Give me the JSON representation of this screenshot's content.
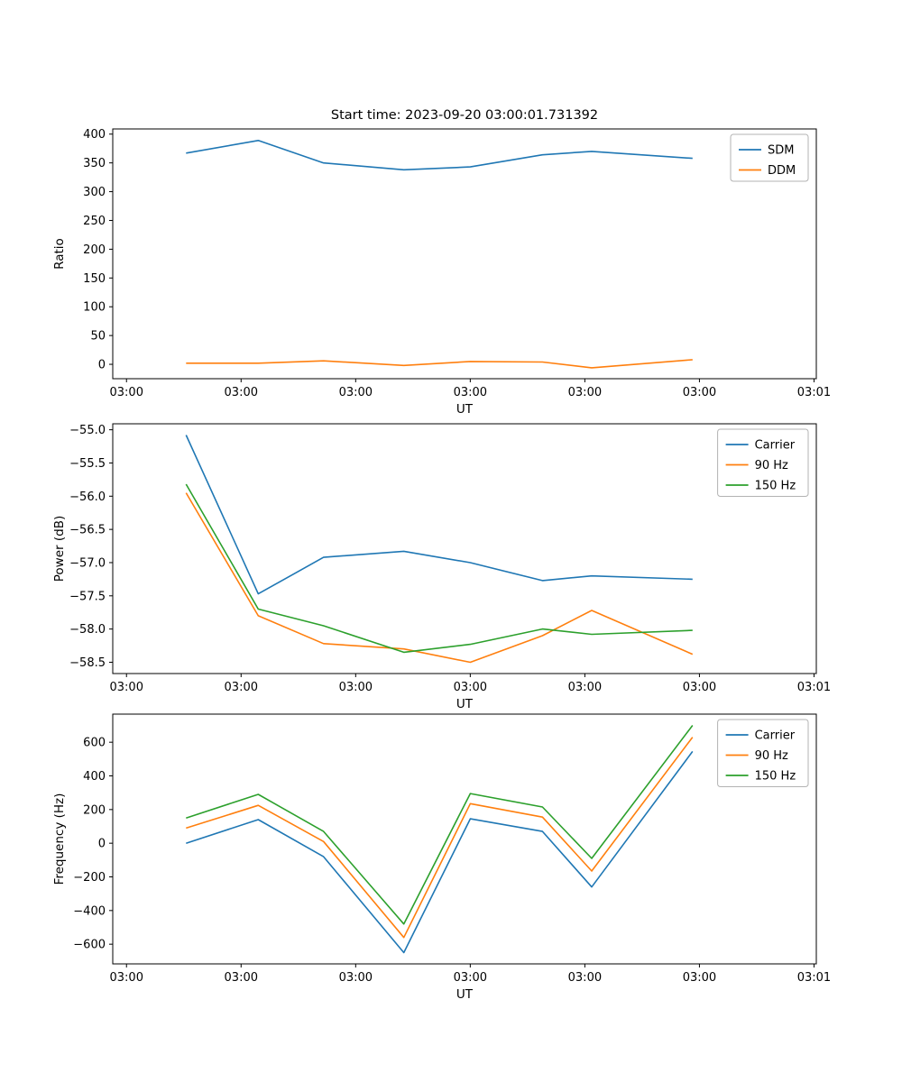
{
  "figure": {
    "title": "Start time: 2023-09-20 03:00:01.731392"
  },
  "chart_data": [
    {
      "type": "line",
      "name": "ratio-plot",
      "title": "Start time: 2023-09-20 03:00:01.731392",
      "xlabel": "UT",
      "ylabel": "Ratio",
      "xlim": [
        -1.2,
        60.2
      ],
      "ylim": [
        -25,
        409
      ],
      "x": [
        5.2,
        11.5,
        17.2,
        24.2,
        30.0,
        36.3,
        40.6,
        49.4
      ],
      "xticks": {
        "values": [
          0,
          10,
          20,
          30,
          40,
          50,
          60
        ],
        "labels": [
          "03:00",
          "03:00",
          "03:00",
          "03:00",
          "03:00",
          "03:00",
          "03:01"
        ]
      },
      "yticks": {
        "values": [
          0,
          50,
          100,
          150,
          200,
          250,
          300,
          350,
          400
        ],
        "labels": [
          "0",
          "50",
          "100",
          "150",
          "200",
          "250",
          "300",
          "350",
          "400"
        ]
      },
      "series": [
        {
          "name": "SDM",
          "color": "#1f77b4",
          "values": [
            367,
            389,
            350,
            338,
            343,
            364,
            370,
            358
          ]
        },
        {
          "name": "DDM",
          "color": "#ff7f0e",
          "values": [
            2,
            2,
            6,
            -2,
            5,
            4,
            -6,
            8
          ]
        }
      ],
      "legend": {
        "position": "upper right",
        "entries": [
          "SDM",
          "DDM"
        ]
      }
    },
    {
      "type": "line",
      "name": "power-plot",
      "title": "",
      "xlabel": "UT",
      "ylabel": "Power (dB)",
      "xlim": [
        -1.2,
        60.2
      ],
      "ylim": [
        -58.67,
        -54.91
      ],
      "x": [
        5.2,
        11.5,
        17.2,
        24.2,
        30.0,
        36.3,
        40.6,
        49.4
      ],
      "xticks": {
        "values": [
          0,
          10,
          20,
          30,
          40,
          50,
          60
        ],
        "labels": [
          "03:00",
          "03:00",
          "03:00",
          "03:00",
          "03:00",
          "03:00",
          "03:01"
        ]
      },
      "yticks": {
        "values": [
          -58.5,
          -58.0,
          -57.5,
          -57.0,
          -56.5,
          -56.0,
          -55.5,
          -55.0
        ],
        "labels": [
          "−58.5",
          "−58.0",
          "−57.5",
          "−57.0",
          "−56.5",
          "−56.0",
          "−55.5",
          "−55.0"
        ]
      },
      "series": [
        {
          "name": "Carrier",
          "color": "#1f77b4",
          "values": [
            -55.08,
            -57.47,
            -56.92,
            -56.83,
            -57.0,
            -57.27,
            -57.2,
            -57.25
          ]
        },
        {
          "name": "90 Hz",
          "color": "#ff7f0e",
          "values": [
            -55.95,
            -57.8,
            -58.22,
            -58.3,
            -58.5,
            -58.1,
            -57.72,
            -58.38
          ]
        },
        {
          "name": "150 Hz",
          "color": "#2ca02c",
          "values": [
            -55.82,
            -57.7,
            -57.95,
            -58.35,
            -58.23,
            -58.0,
            -58.08,
            -58.02
          ]
        }
      ],
      "legend": {
        "position": "upper right",
        "entries": [
          "Carrier",
          "90 Hz",
          "150 Hz"
        ]
      }
    },
    {
      "type": "line",
      "name": "frequency-plot",
      "title": "",
      "xlabel": "UT",
      "ylabel": "Frequency (Hz)",
      "xlim": [
        -1.2,
        60.2
      ],
      "ylim": [
        -717,
        767
      ],
      "x": [
        5.2,
        11.5,
        17.2,
        24.2,
        30.0,
        36.3,
        40.6,
        49.4
      ],
      "xticks": {
        "values": [
          0,
          10,
          20,
          30,
          40,
          50,
          60
        ],
        "labels": [
          "03:00",
          "03:00",
          "03:00",
          "03:00",
          "03:00",
          "03:00",
          "03:01"
        ]
      },
      "yticks": {
        "values": [
          -600,
          -400,
          -200,
          0,
          200,
          400,
          600
        ],
        "labels": [
          "−600",
          "−400",
          "−200",
          "0",
          "200",
          "400",
          "600"
        ]
      },
      "series": [
        {
          "name": "Carrier",
          "color": "#1f77b4",
          "values": [
            0,
            140,
            -80,
            -650,
            145,
            70,
            -260,
            545
          ]
        },
        {
          "name": "90 Hz",
          "color": "#ff7f0e",
          "values": [
            90,
            225,
            10,
            -560,
            235,
            155,
            -165,
            630
          ]
        },
        {
          "name": "150 Hz",
          "color": "#2ca02c",
          "values": [
            150,
            290,
            70,
            -480,
            295,
            215,
            -90,
            700
          ]
        }
      ],
      "legend": {
        "position": "upper right",
        "entries": [
          "Carrier",
          "90 Hz",
          "150 Hz"
        ]
      }
    }
  ]
}
